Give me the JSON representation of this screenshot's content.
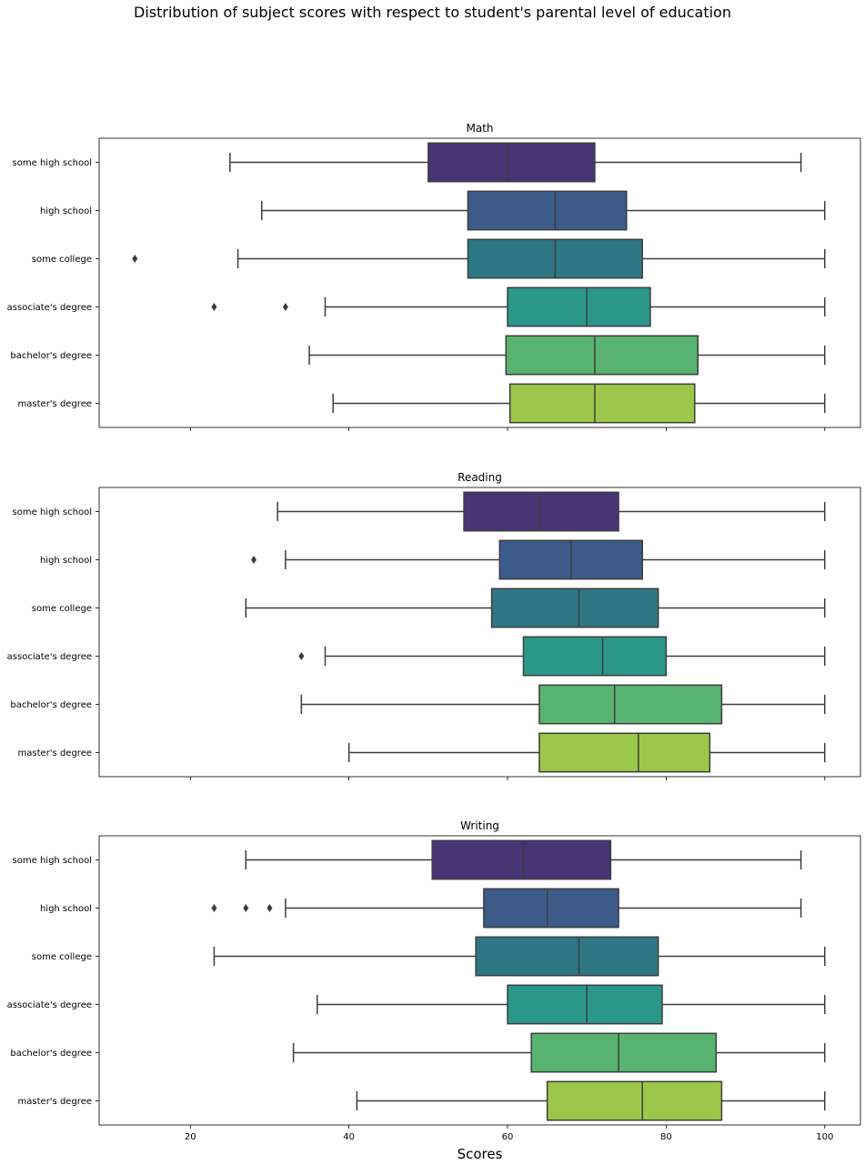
{
  "chart_data": {
    "type": "boxplot-horizontal",
    "suptitle": "Distribution of subject scores with respect to student's parental level of education",
    "xlabel": "Scores",
    "xlim": [
      8.5,
      104.5
    ],
    "xticks": [
      20,
      40,
      60,
      80,
      100
    ],
    "categories": [
      "some high school",
      "high school",
      "some college",
      "associate's degree",
      "bachelor's degree",
      "master's degree"
    ],
    "colors": [
      "#483475",
      "#3d5b89",
      "#2d7784",
      "#2b978a",
      "#58b370",
      "#9bc74b"
    ],
    "panels": [
      {
        "title": "Math",
        "boxes": [
          {
            "whisker_low": 25,
            "q1": 50,
            "median": 60,
            "q3": 71,
            "whisker_high": 97,
            "outliers": []
          },
          {
            "whisker_low": 29,
            "q1": 55,
            "median": 66,
            "q3": 75,
            "whisker_high": 100,
            "outliers": []
          },
          {
            "whisker_low": 26,
            "q1": 55,
            "median": 66,
            "q3": 77,
            "whisker_high": 100,
            "outliers": [
              13
            ]
          },
          {
            "whisker_low": 37,
            "q1": 60,
            "median": 70,
            "q3": 78,
            "whisker_high": 100,
            "outliers": [
              23,
              32
            ]
          },
          {
            "whisker_low": 35,
            "q1": 59.8,
            "median": 71,
            "q3": 84,
            "whisker_high": 100,
            "outliers": []
          },
          {
            "whisker_low": 38,
            "q1": 60.3,
            "median": 71,
            "q3": 83.6,
            "whisker_high": 100,
            "outliers": []
          }
        ]
      },
      {
        "title": "Reading",
        "boxes": [
          {
            "whisker_low": 31,
            "q1": 54.5,
            "median": 64,
            "q3": 74,
            "whisker_high": 100,
            "outliers": []
          },
          {
            "whisker_low": 32,
            "q1": 59,
            "median": 68,
            "q3": 77,
            "whisker_high": 100,
            "outliers": [
              28
            ]
          },
          {
            "whisker_low": 27,
            "q1": 58,
            "median": 69,
            "q3": 79,
            "whisker_high": 100,
            "outliers": []
          },
          {
            "whisker_low": 37,
            "q1": 62,
            "median": 72,
            "q3": 80,
            "whisker_high": 100,
            "outliers": [
              34
            ]
          },
          {
            "whisker_low": 34,
            "q1": 64,
            "median": 73.5,
            "q3": 87,
            "whisker_high": 100,
            "outliers": []
          },
          {
            "whisker_low": 40,
            "q1": 64,
            "median": 76.5,
            "q3": 85.5,
            "whisker_high": 100,
            "outliers": []
          }
        ]
      },
      {
        "title": "Writing",
        "boxes": [
          {
            "whisker_low": 27,
            "q1": 50.5,
            "median": 62,
            "q3": 73,
            "whisker_high": 97,
            "outliers": []
          },
          {
            "whisker_low": 32,
            "q1": 57,
            "median": 65,
            "q3": 74,
            "whisker_high": 97,
            "outliers": [
              23,
              27,
              30
            ]
          },
          {
            "whisker_low": 23,
            "q1": 56,
            "median": 69,
            "q3": 79,
            "whisker_high": 100,
            "outliers": []
          },
          {
            "whisker_low": 36,
            "q1": 60,
            "median": 70,
            "q3": 79.5,
            "whisker_high": 100,
            "outliers": []
          },
          {
            "whisker_low": 33,
            "q1": 63,
            "median": 74,
            "q3": 86.3,
            "whisker_high": 100,
            "outliers": []
          },
          {
            "whisker_low": 41,
            "q1": 65,
            "median": 77,
            "q3": 87,
            "whisker_high": 100,
            "outliers": []
          }
        ]
      }
    ]
  }
}
